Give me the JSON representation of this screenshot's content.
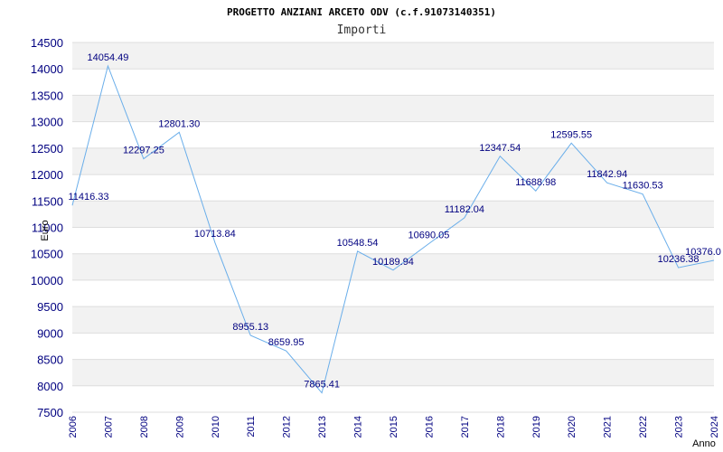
{
  "chart_data": {
    "type": "line",
    "title": "PROGETTO ANZIANI ARCETO ODV (c.f.91073140351)",
    "subtitle": "Importi",
    "xlabel": "Anno",
    "ylabel": "Euro",
    "ylim": [
      7500,
      14500
    ],
    "ytick_step": 500,
    "grid": true,
    "x": [
      "2006",
      "2007",
      "2008",
      "2009",
      "2010",
      "2011",
      "2012",
      "2013",
      "2014",
      "2015",
      "2016",
      "2017",
      "2018",
      "2019",
      "2020",
      "2021",
      "2022",
      "2023",
      "2024"
    ],
    "values": [
      11416.33,
      14054.49,
      12297.25,
      12801.3,
      10713.84,
      8955.13,
      8659.95,
      7865.41,
      10548.54,
      10189.94,
      10690.05,
      11182.04,
      12347.54,
      11688.98,
      12595.55,
      11842.94,
      11630.53,
      10236.38,
      10376.0
    ],
    "data_labels": [
      "11416.33",
      "14054.49",
      "12297.25",
      "12801.30",
      "10713.84",
      "8955.13",
      "8659.95",
      "7865.41",
      "10548.54",
      "10189.94",
      "10690.05",
      "11182.04",
      "12347.54",
      "11688.98",
      "12595.55",
      "11842.94",
      "11630.53",
      "10236.38",
      "10376.0"
    ],
    "line_color": "#6aaeea",
    "band_color": "#f2f2f2",
    "gridline_color": "#dddddd",
    "tick_color": "#000080"
  }
}
